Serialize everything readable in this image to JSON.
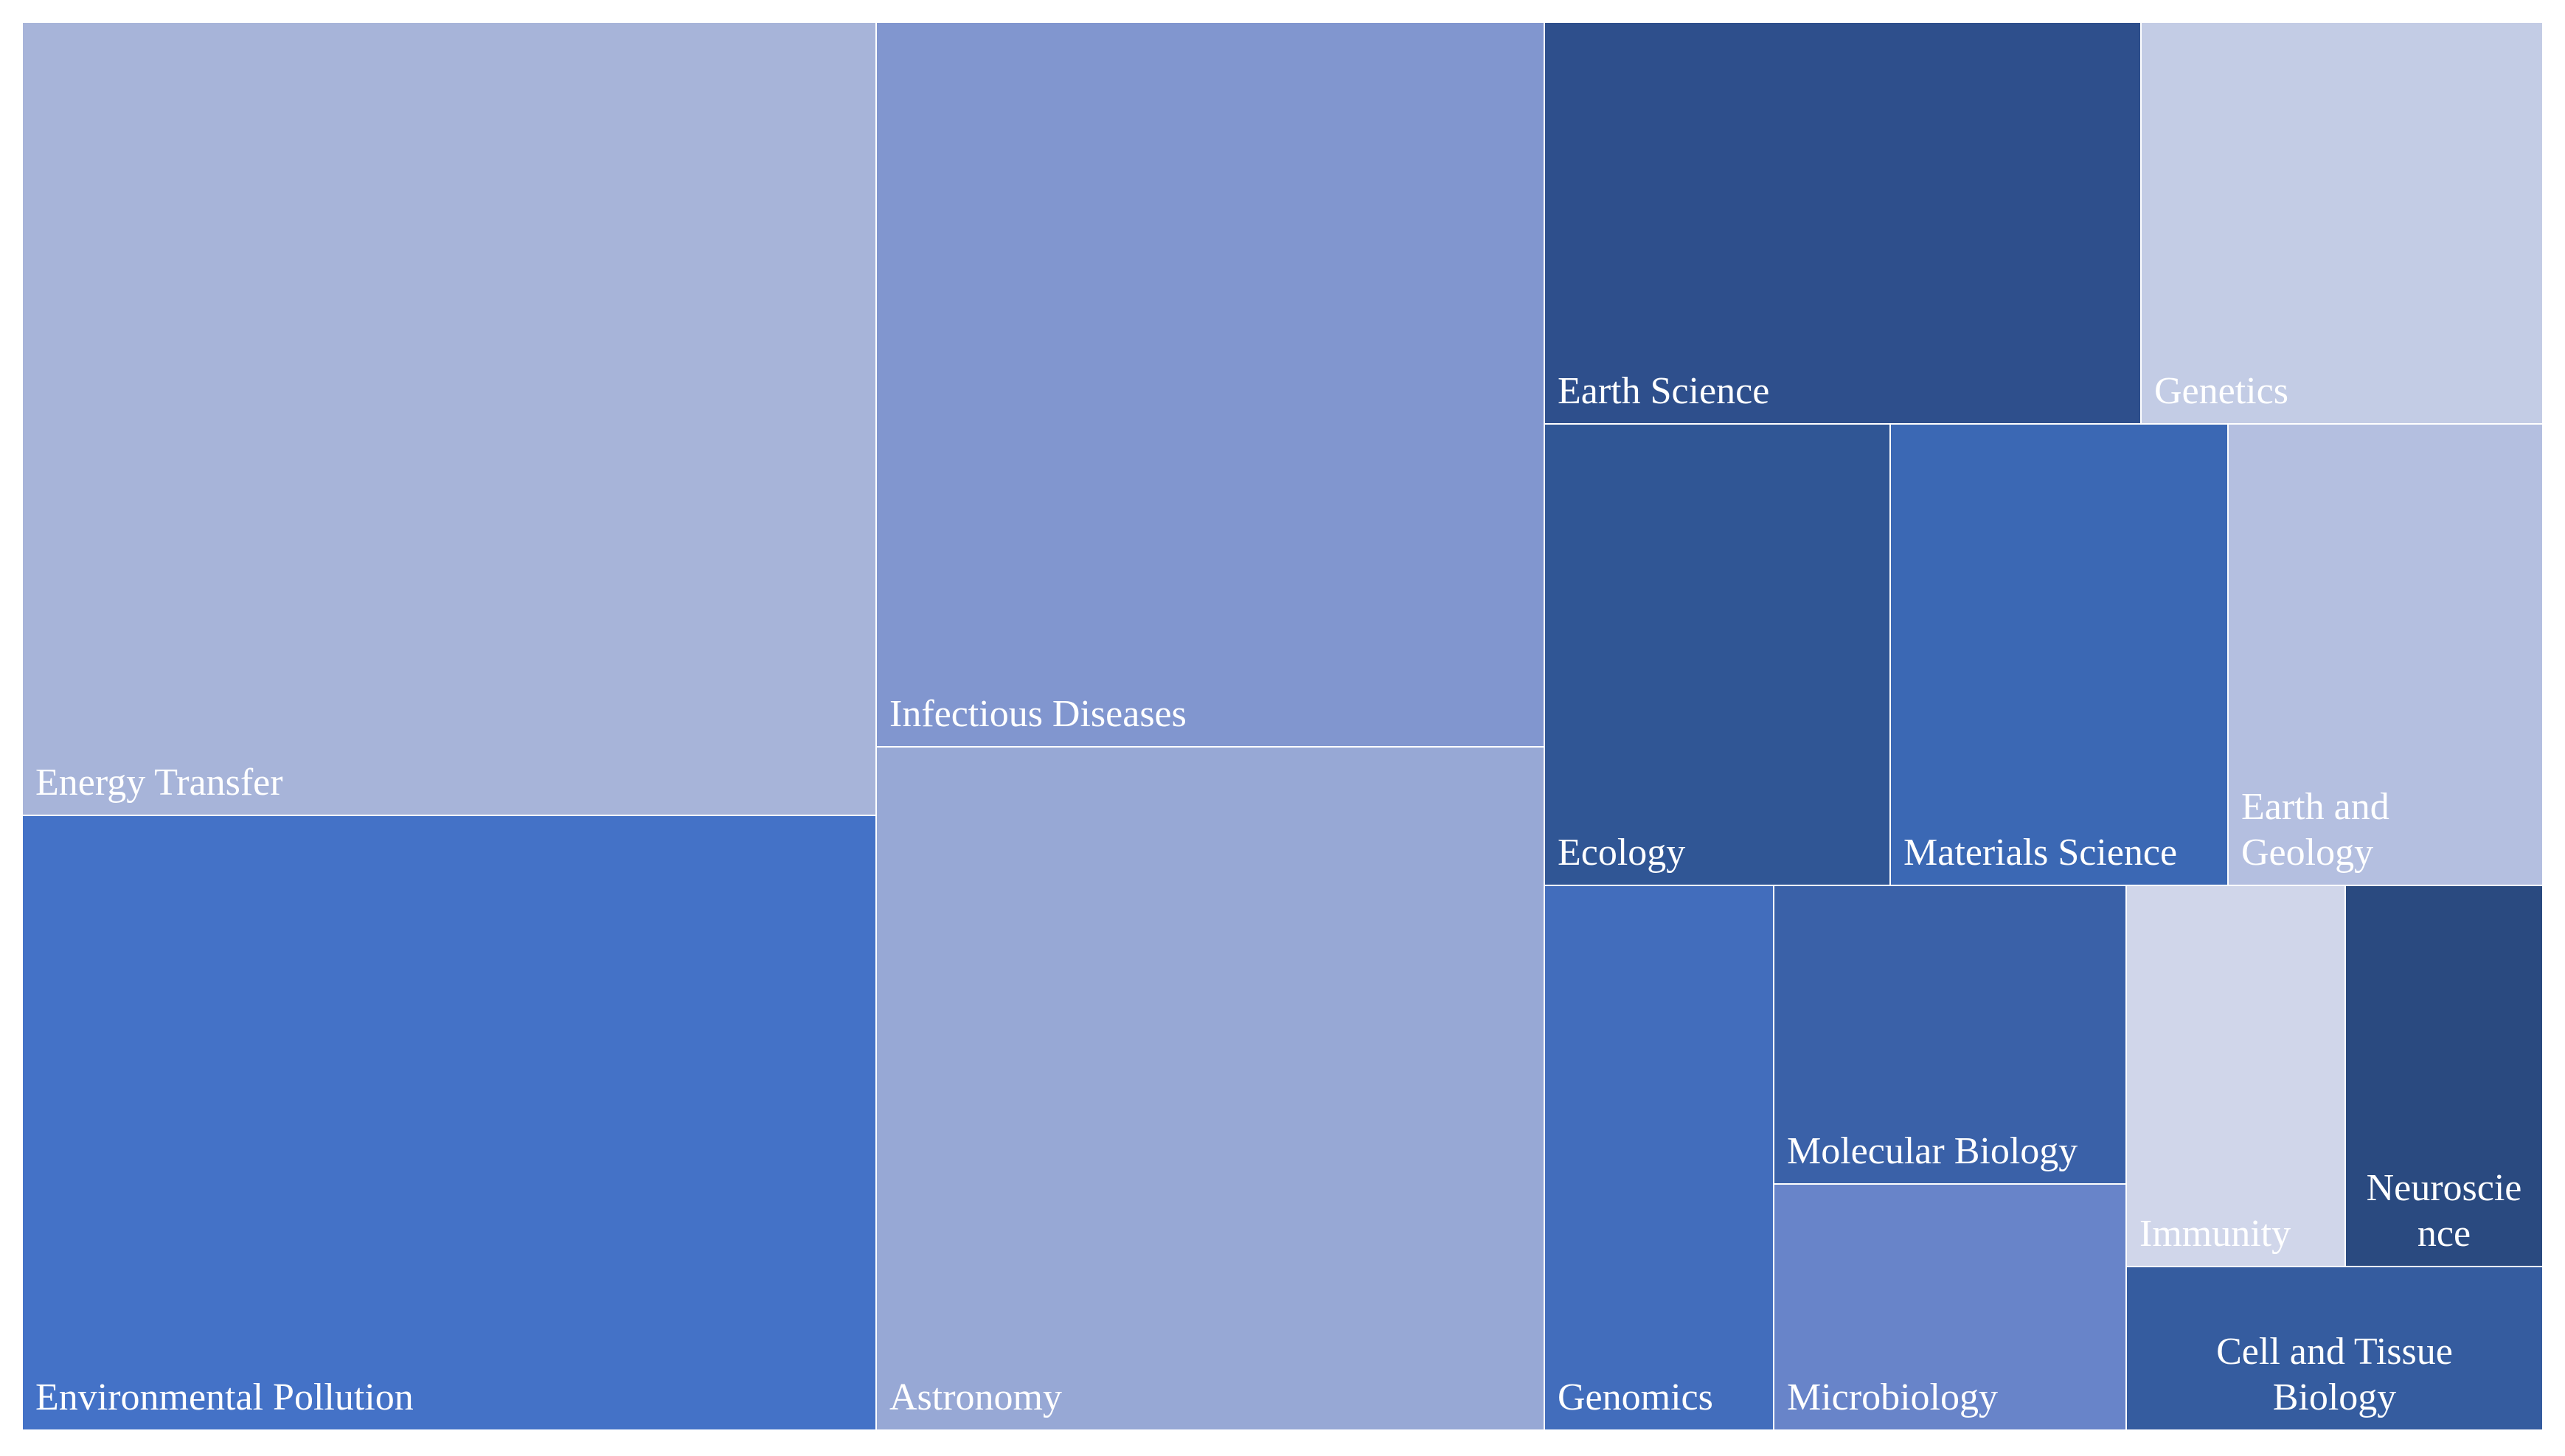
{
  "chart_data": {
    "type": "treemap",
    "title": "",
    "items": [
      {
        "label": "Energy Transfer",
        "lines": [
          "Energy Transfer"
        ],
        "color": "#a7b4d9"
      },
      {
        "label": "Environmental Pollution",
        "lines": [
          "Environmental Pollution"
        ],
        "color": "#4472c7"
      },
      {
        "label": "Infectious Diseases",
        "lines": [
          "Infectious Diseases"
        ],
        "color": "#8196cf"
      },
      {
        "label": "Astronomy",
        "lines": [
          "Astronomy"
        ],
        "color": "#97a8d5"
      },
      {
        "label": "Earth Science",
        "lines": [
          "Earth Science"
        ],
        "color": "#2e4f8c"
      },
      {
        "label": "Genetics",
        "lines": [
          "Genetics"
        ],
        "color": "#c3cce5"
      },
      {
        "label": "Ecology",
        "lines": [
          "Ecology"
        ],
        "color": "#305695"
      },
      {
        "label": "Materials Science",
        "lines": [
          "Materials Science"
        ],
        "color": "#3b68b4"
      },
      {
        "label": "Earth and Geology",
        "lines": [
          "Earth and",
          "Geology"
        ],
        "color": "#b4bfe0"
      },
      {
        "label": "Genomics",
        "lines": [
          "Genomics"
        ],
        "color": "#426dbc"
      },
      {
        "label": "Molecular Biology",
        "lines": [
          "Molecular Biology"
        ],
        "color": "#3a61a8"
      },
      {
        "label": "Microbiology",
        "lines": [
          "Microbiology"
        ],
        "color": "#6884c9"
      },
      {
        "label": "Immunity",
        "lines": [
          "Immunity"
        ],
        "color": "#d0d6ea"
      },
      {
        "label": "Neuroscience",
        "lines": [
          "Neuroscie",
          "nce"
        ],
        "color": "#2a4a80"
      },
      {
        "label": "Cell and Tissue Biology",
        "lines": [
          "Cell and Tissue",
          "Biology"
        ],
        "color": "#355c9f"
      }
    ]
  }
}
